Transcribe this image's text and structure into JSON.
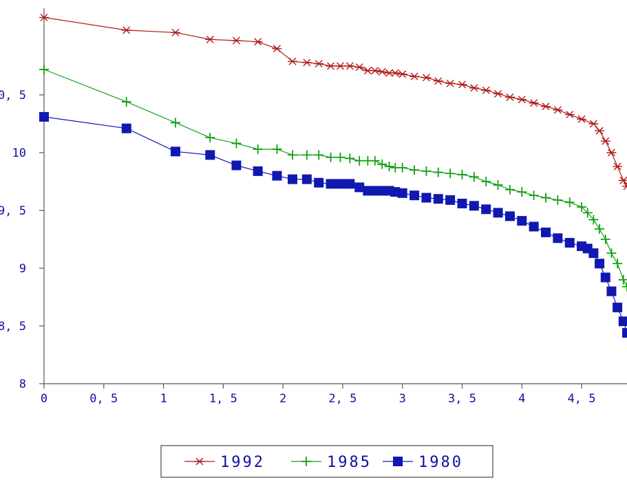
{
  "chart_data": {
    "type": "line",
    "title": "",
    "xlabel": "",
    "ylabel": "",
    "xlim": [
      0,
      4.88
    ],
    "ylim": [
      8,
      11.25
    ],
    "x_ticks": [
      0,
      0.5,
      1,
      1.5,
      2,
      2.5,
      3,
      3.5,
      4,
      4.5
    ],
    "x_tick_labels": [
      "0",
      "0, 5",
      "1",
      "1, 5",
      "2",
      "2, 5",
      "3",
      "3, 5",
      "4",
      "4, 5"
    ],
    "y_ticks": [
      8,
      8.5,
      9,
      9.5,
      10,
      10.5
    ],
    "y_tick_labels": [
      "8",
      "8, 5",
      "9",
      "9, 5",
      "10",
      "10, 5"
    ],
    "grid": false,
    "legend_position": "bottom-center",
    "series": [
      {
        "name": "1992",
        "color": "#b01818",
        "marker": "asterisk",
        "points": [
          [
            0.0,
            11.17
          ],
          [
            0.69,
            11.06
          ],
          [
            1.1,
            11.04
          ],
          [
            1.39,
            10.98
          ],
          [
            1.61,
            10.97
          ],
          [
            1.79,
            10.96
          ],
          [
            1.95,
            10.9
          ],
          [
            2.08,
            10.79
          ],
          [
            2.2,
            10.78
          ],
          [
            2.3,
            10.77
          ],
          [
            2.4,
            10.75
          ],
          [
            2.48,
            10.75
          ],
          [
            2.56,
            10.75
          ],
          [
            2.64,
            10.74
          ],
          [
            2.71,
            10.71
          ],
          [
            2.77,
            10.71
          ],
          [
            2.83,
            10.7
          ],
          [
            2.89,
            10.69
          ],
          [
            2.94,
            10.69
          ],
          [
            3.0,
            10.68
          ],
          [
            3.1,
            10.66
          ],
          [
            3.2,
            10.65
          ],
          [
            3.3,
            10.62
          ],
          [
            3.4,
            10.6
          ],
          [
            3.5,
            10.59
          ],
          [
            3.6,
            10.56
          ],
          [
            3.7,
            10.54
          ],
          [
            3.8,
            10.51
          ],
          [
            3.9,
            10.48
          ],
          [
            4.0,
            10.46
          ],
          [
            4.1,
            10.43
          ],
          [
            4.2,
            10.4
          ],
          [
            4.3,
            10.37
          ],
          [
            4.4,
            10.33
          ],
          [
            4.5,
            10.29
          ],
          [
            4.6,
            10.25
          ],
          [
            4.65,
            10.19
          ],
          [
            4.7,
            10.1
          ],
          [
            4.75,
            10.0
          ],
          [
            4.8,
            9.88
          ],
          [
            4.85,
            9.76
          ],
          [
            4.88,
            9.71
          ]
        ]
      },
      {
        "name": "1985",
        "color": "#10a010",
        "marker": "plus",
        "points": [
          [
            0.0,
            10.72
          ],
          [
            0.69,
            10.44
          ],
          [
            1.1,
            10.26
          ],
          [
            1.39,
            10.13
          ],
          [
            1.61,
            10.08
          ],
          [
            1.79,
            10.03
          ],
          [
            1.95,
            10.03
          ],
          [
            2.08,
            9.98
          ],
          [
            2.2,
            9.98
          ],
          [
            2.3,
            9.98
          ],
          [
            2.4,
            9.96
          ],
          [
            2.48,
            9.96
          ],
          [
            2.56,
            9.95
          ],
          [
            2.64,
            9.93
          ],
          [
            2.71,
            9.93
          ],
          [
            2.77,
            9.93
          ],
          [
            2.83,
            9.9
          ],
          [
            2.89,
            9.88
          ],
          [
            2.94,
            9.87
          ],
          [
            3.0,
            9.87
          ],
          [
            3.1,
            9.85
          ],
          [
            3.2,
            9.84
          ],
          [
            3.3,
            9.83
          ],
          [
            3.4,
            9.82
          ],
          [
            3.5,
            9.81
          ],
          [
            3.6,
            9.79
          ],
          [
            3.7,
            9.75
          ],
          [
            3.8,
            9.72
          ],
          [
            3.9,
            9.68
          ],
          [
            4.0,
            9.66
          ],
          [
            4.1,
            9.63
          ],
          [
            4.2,
            9.61
          ],
          [
            4.3,
            9.59
          ],
          [
            4.4,
            9.57
          ],
          [
            4.5,
            9.53
          ],
          [
            4.55,
            9.48
          ],
          [
            4.6,
            9.42
          ],
          [
            4.65,
            9.34
          ],
          [
            4.7,
            9.25
          ],
          [
            4.75,
            9.13
          ],
          [
            4.8,
            9.04
          ],
          [
            4.85,
            8.9
          ],
          [
            4.88,
            8.84
          ]
        ]
      },
      {
        "name": "1980",
        "color": "#1018b0",
        "marker": "square",
        "points": [
          [
            0.0,
            10.31
          ],
          [
            0.69,
            10.21
          ],
          [
            1.1,
            10.01
          ],
          [
            1.39,
            9.98
          ],
          [
            1.61,
            9.89
          ],
          [
            1.79,
            9.84
          ],
          [
            1.95,
            9.8
          ],
          [
            2.08,
            9.77
          ],
          [
            2.2,
            9.77
          ],
          [
            2.3,
            9.74
          ],
          [
            2.4,
            9.73
          ],
          [
            2.48,
            9.73
          ],
          [
            2.56,
            9.73
          ],
          [
            2.64,
            9.7
          ],
          [
            2.71,
            9.67
          ],
          [
            2.77,
            9.67
          ],
          [
            2.83,
            9.67
          ],
          [
            2.89,
            9.67
          ],
          [
            2.94,
            9.66
          ],
          [
            3.0,
            9.65
          ],
          [
            3.1,
            9.63
          ],
          [
            3.2,
            9.61
          ],
          [
            3.3,
            9.6
          ],
          [
            3.4,
            9.59
          ],
          [
            3.5,
            9.56
          ],
          [
            3.6,
            9.54
          ],
          [
            3.7,
            9.51
          ],
          [
            3.8,
            9.48
          ],
          [
            3.9,
            9.45
          ],
          [
            4.0,
            9.41
          ],
          [
            4.1,
            9.36
          ],
          [
            4.2,
            9.31
          ],
          [
            4.3,
            9.26
          ],
          [
            4.4,
            9.22
          ],
          [
            4.5,
            9.19
          ],
          [
            4.55,
            9.17
          ],
          [
            4.6,
            9.13
          ],
          [
            4.65,
            9.04
          ],
          [
            4.7,
            8.92
          ],
          [
            4.75,
            8.8
          ],
          [
            4.8,
            8.66
          ],
          [
            4.85,
            8.54
          ],
          [
            4.88,
            8.44
          ]
        ]
      }
    ]
  }
}
